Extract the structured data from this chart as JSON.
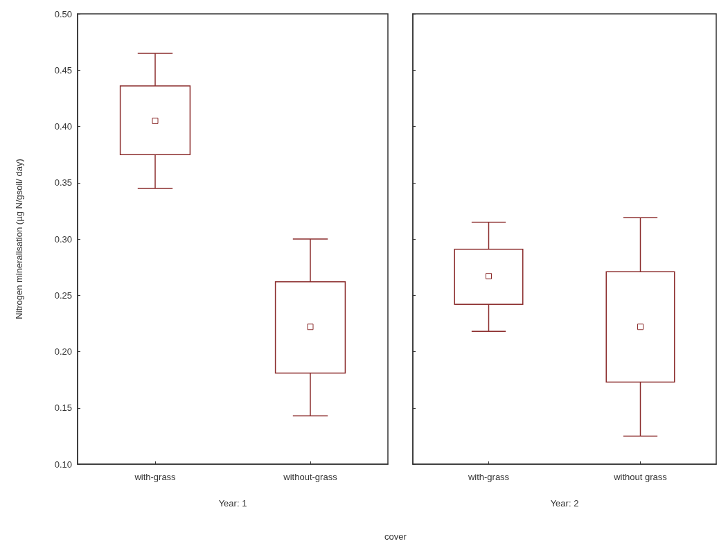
{
  "chart_data": [
    {
      "type": "box",
      "ylabel": "Nitrogen mineralisation (µg N/gsoil/ day)",
      "xlabel": "Year: 1",
      "annotations": [
        "cover"
      ],
      "categories": [
        "with-grass",
        "without-grass"
      ],
      "color": "#8b2c2c",
      "ylim": [
        0.1,
        0.5
      ],
      "yticks": [
        {
          "value": 0.1,
          "label": "0.10"
        },
        {
          "value": 0.15,
          "label": "0.15"
        },
        {
          "value": 0.2,
          "label": "0.20"
        },
        {
          "value": 0.25,
          "label": "0.25"
        },
        {
          "value": 0.3,
          "label": "0.30"
        },
        {
          "value": 0.35,
          "label": "0.35"
        },
        {
          "value": 0.4,
          "label": "0.40"
        },
        {
          "value": 0.45,
          "label": "0.45"
        },
        {
          "value": 0.5,
          "label": "0.50"
        }
      ],
      "grid": false,
      "boxes": [
        {
          "low": 0.345,
          "q1": 0.375,
          "median": 0.405,
          "q3": 0.436,
          "high": 0.465
        },
        {
          "low": 0.143,
          "q1": 0.181,
          "median": 0.222,
          "q3": 0.262,
          "high": 0.3
        }
      ]
    },
    {
      "type": "box",
      "xlabel": "Year: 2",
      "categories": [
        "with-grass",
        "without grass"
      ],
      "color": "#8b2c2c",
      "ylim": [
        0.1,
        0.5
      ],
      "yticks": [
        {
          "value": 0.1,
          "label": null
        },
        {
          "value": 0.15,
          "label": null
        },
        {
          "value": 0.2,
          "label": null
        },
        {
          "value": 0.25,
          "label": null
        },
        {
          "value": 0.3,
          "label": null
        },
        {
          "value": 0.35,
          "label": null
        },
        {
          "value": 0.4,
          "label": null
        },
        {
          "value": 0.45,
          "label": null
        },
        {
          "value": 0.5,
          "label": null
        }
      ],
      "grid": false,
      "tick_labels": "x",
      "boxes": [
        {
          "low": 0.218,
          "q1": 0.242,
          "median": 0.267,
          "q3": 0.291,
          "high": 0.315
        },
        {
          "low": 0.125,
          "q1": 0.173,
          "median": 0.222,
          "q3": 0.271,
          "high": 0.319
        }
      ]
    }
  ]
}
